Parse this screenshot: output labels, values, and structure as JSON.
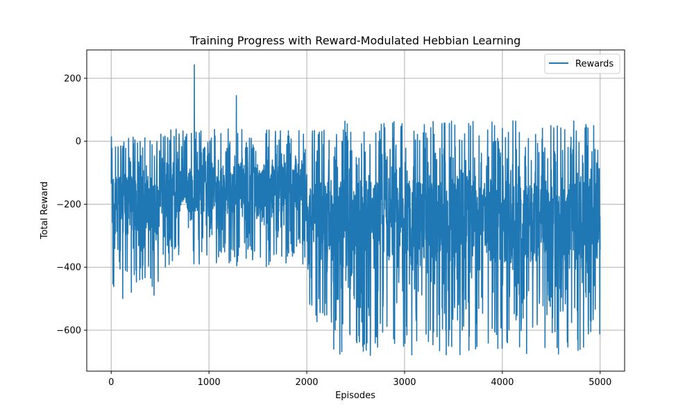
{
  "chart_data": {
    "type": "line",
    "title": "Training Progress with Reward-Modulated Hebbian Learning",
    "xlabel": "Episodes",
    "ylabel": "Total Reward",
    "xlim": [
      -250,
      5250
    ],
    "ylim": [
      -730,
      290
    ],
    "xticks": [
      0,
      1000,
      2000,
      3000,
      4000,
      5000
    ],
    "xtick_labels": [
      "0",
      "1000",
      "2000",
      "3000",
      "4000",
      "5000"
    ],
    "yticks": [
      200,
      0,
      -200,
      -400,
      -600
    ],
    "ytick_labels": [
      "200",
      "0",
      "−200",
      "−400",
      "−600"
    ],
    "grid": true,
    "legend_position": "top-right",
    "color": "#1f77b4",
    "series": [
      {
        "name": "Rewards",
        "episodes": 5000,
        "segments": [
          {
            "x": [
              0,
              500
            ],
            "y_range": [
              -500,
              15
            ],
            "mean": -200
          },
          {
            "x": [
              500,
              2000
            ],
            "y_range": [
              -400,
              45
            ],
            "mean": -150
          },
          {
            "x": [
              2000,
              2250
            ],
            "y_range": [
              -575,
              35
            ],
            "mean": -230
          },
          {
            "x": [
              2250,
              5000
            ],
            "y_range": [
              -680,
              65
            ],
            "mean": -250
          }
        ],
        "peaks": [
          {
            "x": 850,
            "y": 243
          },
          {
            "x": 1280,
            "y": 145
          },
          {
            "x": 2650,
            "y": -680
          },
          {
            "x": 3700,
            "y": 63
          },
          {
            "x": 3450,
            "y": -650
          },
          {
            "x": 4560,
            "y": -655
          }
        ]
      }
    ]
  }
}
